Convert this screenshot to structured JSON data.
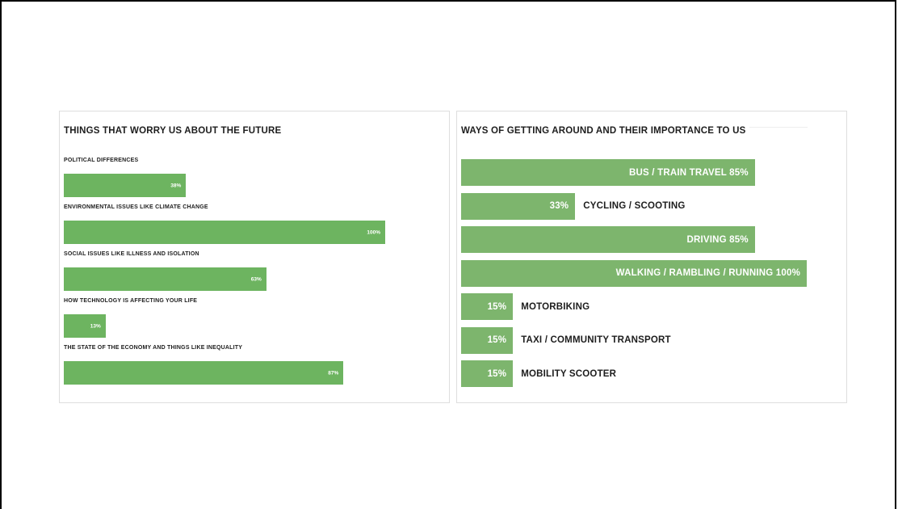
{
  "chart_data": [
    {
      "type": "bar",
      "orientation": "horizontal",
      "title": "THINGS THAT WORRY US ABOUT THE FUTURE",
      "categories": [
        "POLITICAL DIFFERENCES",
        "ENVIRONMENTAL ISSUES LIKE CLIMATE CHANGE",
        "SOCIAL ISSUES LIKE ILLNESS AND ISOLATION",
        "HOW TECHNOLOGY IS AFFECTING YOUR LIFE",
        "THE STATE OF THE ECONOMY AND THINGS LIKE INEQUALITY"
      ],
      "values": [
        38,
        100,
        63,
        13,
        87
      ],
      "value_labels": [
        "38%",
        "100%",
        "63%",
        "13%",
        "87%"
      ],
      "xlim": [
        0,
        100
      ],
      "grid": false,
      "bar_color": "#6db460"
    },
    {
      "type": "bar",
      "orientation": "horizontal",
      "title": "WAYS OF GETTING AROUND AND THEIR IMPORTANCE TO US",
      "categories": [
        "BUS / TRAIN TRAVEL",
        "CYCLING / SCOOTING",
        "DRIVING",
        "WALKING / RAMBLING / RUNNING",
        "MOTORBIKING",
        "TAXI / COMMUNITY TRANSPORT",
        "MOBILITY SCOOTER"
      ],
      "values": [
        85,
        33,
        85,
        100,
        15,
        15,
        15
      ],
      "value_labels": [
        "85%",
        "33%",
        "85%",
        "100%",
        "15%",
        "15%",
        "15%"
      ],
      "xlim": [
        0,
        100
      ],
      "grid": false,
      "bar_color": "#7db56d"
    }
  ]
}
